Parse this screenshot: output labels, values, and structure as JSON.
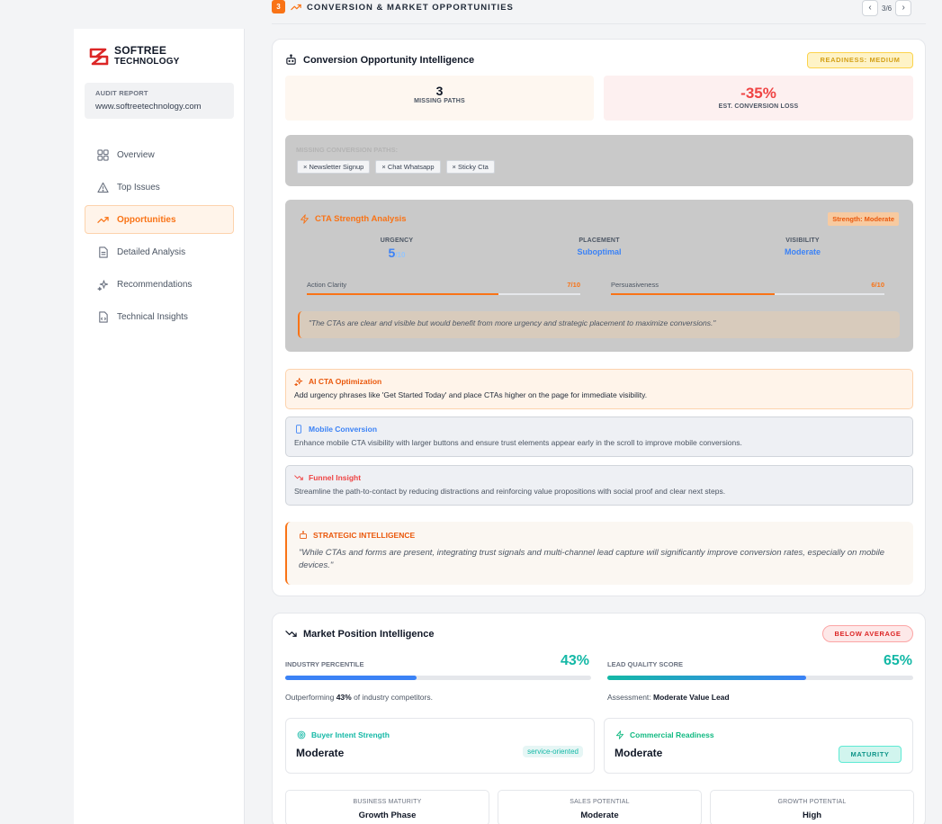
{
  "header": {
    "section_number": "3",
    "section_title": "CONVERSION & MARKET OPPORTUNITIES",
    "page_indicator": "3/6",
    "prev": "‹",
    "next": "›"
  },
  "sidebar": {
    "logo_line1": "SOFTREE",
    "logo_line2": "TECHNOLOGY",
    "audit_label": "AUDIT REPORT",
    "audit_url": "www.softreetechnology.com",
    "items": [
      {
        "label": "Overview",
        "icon": "grid-icon"
      },
      {
        "label": "Top Issues",
        "icon": "warning-icon"
      },
      {
        "label": "Opportunities",
        "icon": "trend-up-icon",
        "active": true
      },
      {
        "label": "Detailed Analysis",
        "icon": "document-icon"
      },
      {
        "label": "Recommendations",
        "icon": "sparkles-icon"
      },
      {
        "label": "Technical Insights",
        "icon": "file-code-icon"
      }
    ]
  },
  "conversion": {
    "title": "Conversion Opportunity Intelligence",
    "readiness": "READINESS: MEDIUM",
    "missing_paths_count": "3",
    "missing_paths_label": "MISSING PATHS",
    "conversion_loss": "-35%",
    "conversion_loss_label": "EST. CONVERSION LOSS",
    "missing_title": "MISSING CONVERSION PATHS:",
    "missing_tags": [
      "Newsletter Signup",
      "Chat Whatsapp",
      "Sticky Cta"
    ],
    "cta": {
      "title": "CTA Strength Analysis",
      "strength": "Strength: Moderate",
      "urgency_label": "URGENCY",
      "urgency_value": "5",
      "urgency_max": "/10",
      "placement_label": "PLACEMENT",
      "placement_value": "Suboptimal",
      "visibility_label": "VISIBILITY",
      "visibility_value": "Moderate",
      "action_clarity_label": "Action Clarity",
      "action_clarity_value": "7/10",
      "action_clarity_fraction": 0.7,
      "persuasiveness_label": "Persuasiveness",
      "persuasiveness_value": "6/10",
      "persuasiveness_fraction": 0.6,
      "quote": "\"The CTAs are clear and visible but would benefit from more urgency and strategic placement to maximize conversions.\""
    },
    "ai_title": "AI CTA Optimization",
    "ai_text": "Add urgency phrases like 'Get Started Today' and place CTAs higher on the page for immediate visibility.",
    "mobile_title": "Mobile Conversion",
    "mobile_text": "Enhance mobile CTA visibility with larger buttons and ensure trust elements appear early in the scroll to improve mobile conversions.",
    "funnel_title": "Funnel Insight",
    "funnel_text": "Streamline the path-to-contact by reducing distractions and reinforcing value propositions with social proof and clear next steps.",
    "strategic_title": "STRATEGIC INTELLIGENCE",
    "strategic_text": "\"While CTAs and forms are present, integrating trust signals and multi-channel lead capture will significantly improve conversion rates, especially on mobile devices.\""
  },
  "market": {
    "title": "Market Position Intelligence",
    "badge": "BELOW AVERAGE",
    "industry_label": "INDUSTRY PERCENTILE",
    "industry_value": "43%",
    "industry_fraction": 0.43,
    "industry_note_pre": "Outperforming ",
    "industry_note_bold": "43%",
    "industry_note_post": " of industry competitors.",
    "lead_label": "LEAD QUALITY SCORE",
    "lead_value": "65%",
    "lead_fraction": 0.65,
    "lead_note_pre": "Assessment: ",
    "lead_note_bold": "Moderate Value Lead",
    "buyer_title": "Buyer Intent Strength",
    "buyer_value": "Moderate",
    "buyer_tag": "service-oriented",
    "commercial_title": "Commercial Readiness",
    "commercial_value": "Moderate",
    "commercial_tag": "MATURITY",
    "business_maturity_label": "BUSINESS MATURITY",
    "business_maturity_value": "Growth Phase",
    "sales_potential_label": "SALES POTENTIAL",
    "sales_potential_value": "Moderate",
    "growth_potential_label": "GROWTH POTENTIAL",
    "growth_potential_value": "High"
  },
  "colors": {
    "accent": "#f97316",
    "danger": "#ef4444",
    "teal": "#14b8a6",
    "blue": "#3b82f6"
  }
}
